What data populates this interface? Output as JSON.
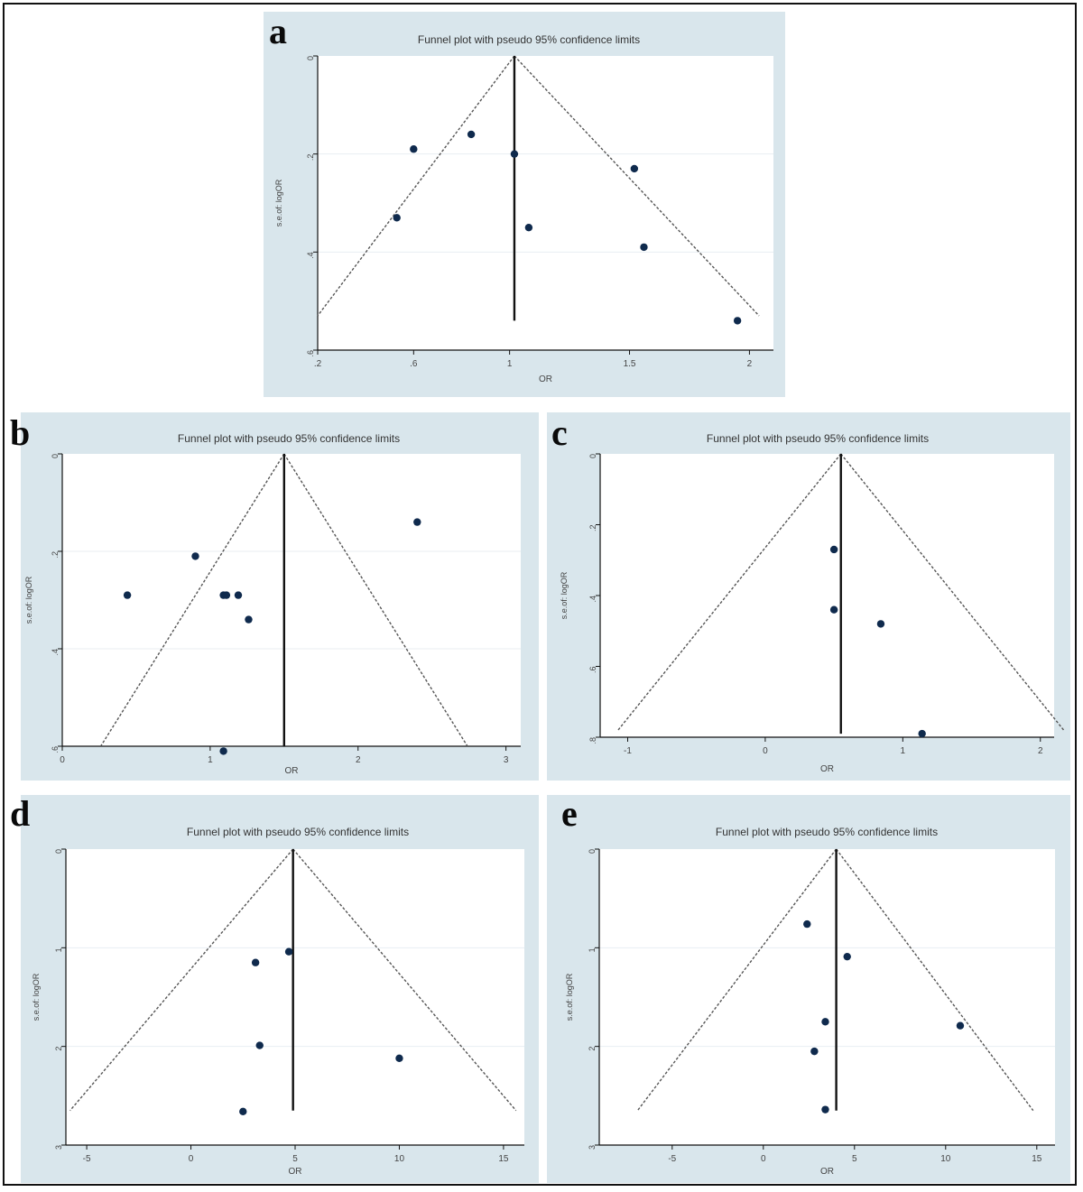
{
  "colors": {
    "panel_bg": "#d9e6ec",
    "plot_bg": "#ffffff",
    "point": "#0f2a4d",
    "line": "#111111",
    "grid": "#e8eef2"
  },
  "charts": [
    {
      "letter": "a",
      "title": "Funnel plot with pseudo 95% confidence limits",
      "chart_data": {
        "type": "scatter",
        "subtype": "funnel",
        "title": "Funnel plot with pseudo 95% confidence limits",
        "xlabel": "OR",
        "ylabel": "s.e.of: logOR",
        "xlim": [
          0.2,
          2.1
        ],
        "ylim": [
          0,
          0.6
        ],
        "y_reversed": true,
        "grid": true,
        "xticks": [
          0.2,
          0.6,
          1,
          1.5,
          2
        ],
        "xtick_labels": [
          ".2",
          ".6",
          "1",
          "1.5",
          "2"
        ],
        "yticks": [
          0,
          0.2,
          0.4,
          0.6
        ],
        "ytick_labels": [
          "0",
          ".2",
          ".4",
          ".6"
        ],
        "center": 1.02,
        "apex_y": 0,
        "ci_bottom_y": 0.53,
        "ci_bottom_x": [
          0.2,
          2.04
        ],
        "vline_bottom_y": 0.54,
        "x": [
          0.6,
          0.84,
          1.02,
          1.52,
          1.95,
          0.53,
          1.08,
          1.56
        ],
        "y": [
          0.19,
          0.16,
          0.2,
          0.23,
          0.54,
          0.33,
          0.35,
          0.39
        ]
      }
    },
    {
      "letter": "b",
      "title": "Funnel plot with pseudo 95% confidence limits",
      "chart_data": {
        "type": "scatter",
        "subtype": "funnel",
        "title": "Funnel plot with pseudo 95% confidence limits",
        "xlabel": "OR",
        "ylabel": "s.e.of: logOR",
        "xlim": [
          0,
          3.1
        ],
        "ylim": [
          0,
          0.6
        ],
        "y_reversed": true,
        "grid": true,
        "xticks": [
          0,
          1,
          2,
          3
        ],
        "xtick_labels": [
          "0",
          "1",
          "2",
          "3"
        ],
        "yticks": [
          0,
          0.2,
          0.4,
          0.6
        ],
        "ytick_labels": [
          "0",
          ".2",
          ".4",
          ".6"
        ],
        "center": 1.5,
        "apex_y": 0,
        "ci_bottom_y": 0.6,
        "ci_bottom_x": [
          0.26,
          2.74
        ],
        "vline_bottom_y": 0.6,
        "x": [
          2.4,
          0.9,
          0.44,
          1.09,
          1.11,
          1.19,
          1.26,
          1.09
        ],
        "y": [
          0.14,
          0.21,
          0.29,
          0.29,
          0.29,
          0.29,
          0.34,
          0.61
        ]
      }
    },
    {
      "letter": "c",
      "title": "Funnel plot with pseudo 95% confidence limits",
      "chart_data": {
        "type": "scatter",
        "subtype": "funnel",
        "title": "Funnel plot with pseudo 95% confidence limits",
        "xlabel": "OR",
        "ylabel": "s.e.of: logOR",
        "xlim": [
          -1.2,
          2.1
        ],
        "ylim": [
          0,
          0.8
        ],
        "y_reversed": true,
        "grid": false,
        "xticks": [
          -1,
          0,
          1,
          2
        ],
        "xtick_labels": [
          "-1",
          "0",
          "1",
          "2"
        ],
        "yticks": [
          0,
          0.2,
          0.4,
          0.6,
          0.8
        ],
        "ytick_labels": [
          "0",
          ".2",
          ".4",
          ".6",
          ".8"
        ],
        "center": 0.55,
        "apex_y": 0,
        "ci_bottom_y": 0.78,
        "ci_bottom_x": [
          -1.07,
          2.17
        ],
        "vline_bottom_y": 0.79,
        "x": [
          0.5,
          0.5,
          0.84,
          1.14
        ],
        "y": [
          0.27,
          0.44,
          0.48,
          0.79
        ]
      }
    },
    {
      "letter": "d",
      "title": "Funnel plot with pseudo 95% confidence limits",
      "chart_data": {
        "type": "scatter",
        "subtype": "funnel",
        "title": "Funnel plot with pseudo 95% confidence limits",
        "xlabel": "OR",
        "ylabel": "s.e.of: logOR",
        "xlim": [
          -6,
          16
        ],
        "ylim": [
          0,
          3
        ],
        "y_reversed": true,
        "grid": true,
        "xticks": [
          -5,
          0,
          5,
          10,
          15
        ],
        "xtick_labels": [
          "-5",
          "0",
          "5",
          "10",
          "15"
        ],
        "yticks": [
          0,
          1,
          2,
          3
        ],
        "ytick_labels": [
          "0",
          "1",
          "2",
          "3"
        ],
        "center": 4.9,
        "apex_y": 0,
        "ci_bottom_y": 2.65,
        "ci_bottom_x": [
          -5.8,
          15.6
        ],
        "vline_bottom_y": 2.65,
        "x": [
          4.7,
          3.1,
          3.3,
          10,
          2.5
        ],
        "y": [
          1.04,
          1.15,
          1.99,
          2.12,
          2.66
        ]
      }
    },
    {
      "letter": "e",
      "title": "Funnel plot with pseudo 95% confidence limits",
      "chart_data": {
        "type": "scatter",
        "subtype": "funnel",
        "title": "Funnel plot with pseudo 95% confidence limits",
        "xlabel": "OR",
        "ylabel": "s.e.of: logOR",
        "xlim": [
          -9,
          16
        ],
        "ylim": [
          0,
          3
        ],
        "y_reversed": true,
        "grid": true,
        "xticks": [
          -5,
          0,
          5,
          10,
          15
        ],
        "xtick_labels": [
          "-5",
          "0",
          "5",
          "10",
          "15"
        ],
        "yticks": [
          0,
          1,
          2,
          3
        ],
        "ytick_labels": [
          "0",
          "1",
          "2",
          "3"
        ],
        "center": 4,
        "apex_y": 0,
        "ci_bottom_y": 2.65,
        "ci_bottom_x": [
          -6.9,
          14.8
        ],
        "vline_bottom_y": 2.65,
        "x": [
          2.4,
          4.6,
          3.4,
          10.8,
          2.8,
          3.4
        ],
        "y": [
          0.76,
          1.09,
          1.75,
          1.79,
          2.05,
          2.64
        ]
      }
    }
  ]
}
